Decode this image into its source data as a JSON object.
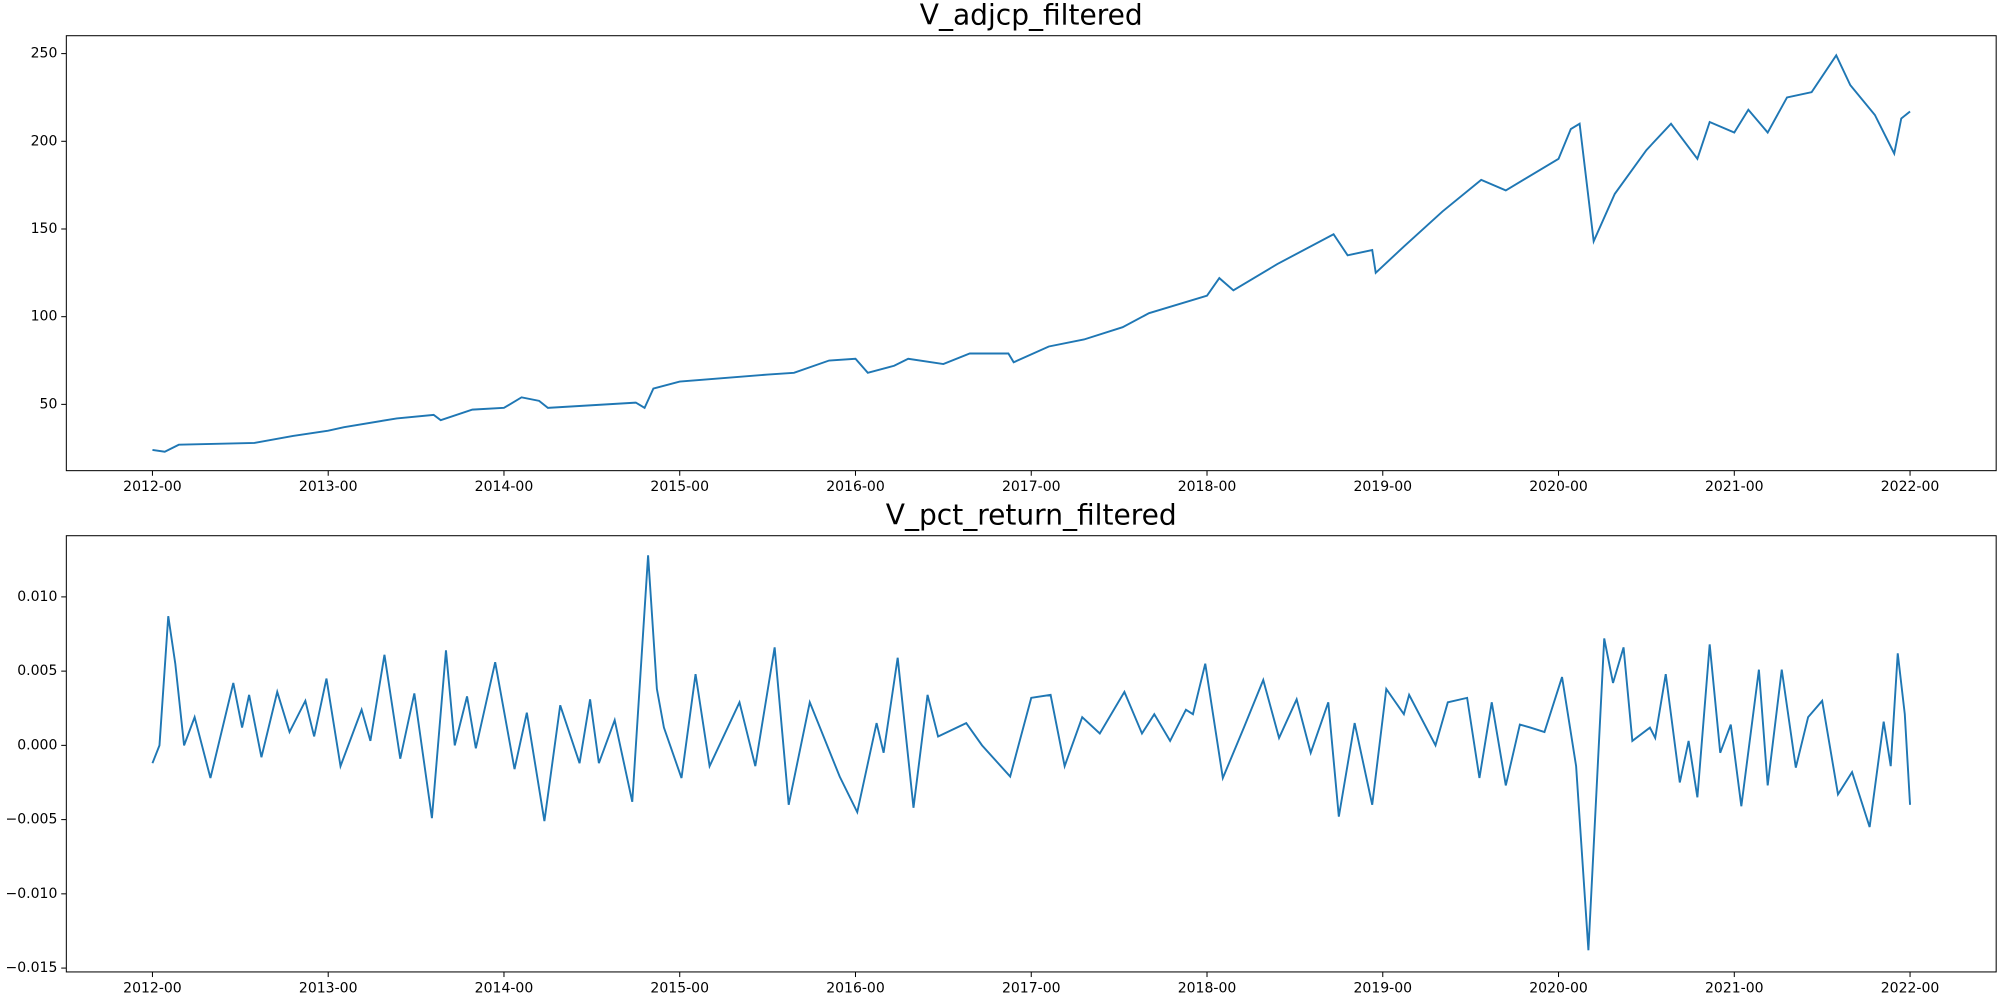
{
  "chart_data": [
    {
      "type": "line",
      "title": "V_adjcp_filtered",
      "color": "#1f77b4",
      "xlim": [
        2011.51,
        2022.49
      ],
      "ylim": [
        12.2,
        260.2
      ],
      "xticks": [
        {
          "value": 2012,
          "label": "2012-00"
        },
        {
          "value": 2013,
          "label": "2013-00"
        },
        {
          "value": 2014,
          "label": "2014-00"
        },
        {
          "value": 2015,
          "label": "2015-00"
        },
        {
          "value": 2016,
          "label": "2016-00"
        },
        {
          "value": 2017,
          "label": "2017-00"
        },
        {
          "value": 2018,
          "label": "2018-00"
        },
        {
          "value": 2019,
          "label": "2019-00"
        },
        {
          "value": 2020,
          "label": "2020-00"
        },
        {
          "value": 2021,
          "label": "2021-00"
        },
        {
          "value": 2022,
          "label": "2022-00"
        }
      ],
      "yticks": [
        50,
        100,
        150,
        200,
        250
      ],
      "x": [
        2012.0,
        2012.07,
        2012.15,
        2012.58,
        2012.8,
        2013.0,
        2013.09,
        2013.39,
        2013.6,
        2013.64,
        2013.82,
        2014.0,
        2014.1,
        2014.2,
        2014.25,
        2014.75,
        2014.8,
        2014.85,
        2015.0,
        2015.5,
        2015.65,
        2015.85,
        2016.0,
        2016.07,
        2016.22,
        2016.3,
        2016.5,
        2016.65,
        2016.87,
        2016.9,
        2017.1,
        2017.3,
        2017.52,
        2017.67,
        2018.0,
        2018.07,
        2018.15,
        2018.4,
        2018.72,
        2018.8,
        2018.94,
        2018.96,
        2019.12,
        2019.34,
        2019.56,
        2019.7,
        2020.0,
        2020.07,
        2020.12,
        2020.2,
        2020.32,
        2020.5,
        2020.64,
        2020.79,
        2020.86,
        2021.0,
        2021.08,
        2021.19,
        2021.3,
        2021.44,
        2021.58,
        2021.66,
        2021.8,
        2021.91,
        2021.95,
        2022.0
      ],
      "values": [
        24,
        23,
        27,
        28,
        32,
        35,
        37,
        42,
        44,
        41,
        47,
        48,
        54,
        52,
        48,
        51,
        48,
        59,
        63,
        67,
        68,
        75,
        76,
        68,
        72,
        76,
        73,
        79,
        79,
        74,
        83,
        87,
        94,
        102,
        112,
        122,
        115,
        130,
        147,
        135,
        138,
        125,
        140,
        160,
        178,
        172,
        190,
        207,
        210,
        143,
        170,
        195,
        210,
        190,
        211,
        205,
        218,
        205,
        225,
        228,
        249,
        232,
        215,
        193,
        213,
        217
      ]
    },
    {
      "type": "line",
      "title": "V_pct_return_filtered",
      "color": "#1f77b4",
      "xlim": [
        2011.51,
        2022.49
      ],
      "ylim": [
        -0.01526,
        0.01412
      ],
      "xticks": [
        {
          "value": 2012,
          "label": "2012-00"
        },
        {
          "value": 2013,
          "label": "2013-00"
        },
        {
          "value": 2014,
          "label": "2014-00"
        },
        {
          "value": 2015,
          "label": "2015-00"
        },
        {
          "value": 2016,
          "label": "2016-00"
        },
        {
          "value": 2017,
          "label": "2017-00"
        },
        {
          "value": 2018,
          "label": "2018-00"
        },
        {
          "value": 2019,
          "label": "2019-00"
        },
        {
          "value": 2020,
          "label": "2020-00"
        },
        {
          "value": 2021,
          "label": "2021-00"
        },
        {
          "value": 2022,
          "label": "2022-00"
        }
      ],
      "yticks": [
        {
          "value": -0.015,
          "label": "−0.015"
        },
        {
          "value": -0.01,
          "label": "−0.010"
        },
        {
          "value": -0.005,
          "label": "−0.005"
        },
        {
          "value": 0,
          "label": "0.000"
        },
        {
          "value": 0.005,
          "label": "0.005"
        },
        {
          "value": 0.01,
          "label": "0.010"
        }
      ],
      "x": [
        2012.0,
        2012.04,
        2012.09,
        2012.13,
        2012.18,
        2012.24,
        2012.33,
        2012.46,
        2012.51,
        2012.55,
        2012.62,
        2012.71,
        2012.78,
        2012.87,
        2012.92,
        2012.99,
        2013.07,
        2013.19,
        2013.24,
        2013.32,
        2013.41,
        2013.49,
        2013.59,
        2013.67,
        2013.72,
        2013.79,
        2013.84,
        2013.95,
        2014.06,
        2014.13,
        2014.23,
        2014.32,
        2014.43,
        2014.49,
        2014.54,
        2014.63,
        2014.73,
        2014.82,
        2014.87,
        2014.91,
        2015.01,
        2015.09,
        2015.17,
        2015.34,
        2015.43,
        2015.54,
        2015.62,
        2015.74,
        2015.91,
        2016.01,
        2016.12,
        2016.16,
        2016.24,
        2016.33,
        2016.41,
        2016.47,
        2016.63,
        2016.72,
        2016.88,
        2017.0,
        2017.11,
        2017.19,
        2017.29,
        2017.39,
        2017.53,
        2017.63,
        2017.7,
        2017.79,
        2017.88,
        2017.92,
        2017.99,
        2018.09,
        2018.21,
        2018.32,
        2018.41,
        2018.51,
        2018.59,
        2018.69,
        2018.75,
        2018.84,
        2018.94,
        2019.02,
        2019.12,
        2019.15,
        2019.3,
        2019.37,
        2019.48,
        2019.55,
        2019.62,
        2019.7,
        2019.78,
        2019.84,
        2019.92,
        2020.02,
        2020.1,
        2020.17,
        2020.26,
        2020.31,
        2020.37,
        2020.42,
        2020.52,
        2020.55,
        2020.61,
        2020.69,
        2020.74,
        2020.79,
        2020.86,
        2020.92,
        2020.98,
        2021.04,
        2021.14,
        2021.19,
        2021.27,
        2021.35,
        2021.42,
        2021.5,
        2021.59,
        2021.67,
        2021.77,
        2021.85,
        2021.89,
        2021.93,
        2021.97,
        2022.0
      ],
      "values": [
        -0.0012,
        0,
        0.0087,
        0.0055,
        0,
        0.0019,
        -0.0022,
        0.0042,
        0.0012,
        0.0034,
        -0.0008,
        0.0036,
        0.0009,
        0.003,
        0.0006,
        0.0045,
        -0.0014,
        0.0024,
        0.0003,
        0.0061,
        -0.0009,
        0.0035,
        -0.0049,
        0.0064,
        0,
        0.0033,
        -0.0002,
        0.0056,
        -0.0016,
        0.0022,
        -0.0051,
        0.0027,
        -0.0012,
        0.0031,
        -0.0012,
        0.0017,
        -0.0038,
        0.0128,
        0.0038,
        0.0012,
        -0.0022,
        0.0048,
        -0.0014,
        0.0029,
        -0.0014,
        0.0066,
        -0.004,
        0.0029,
        -0.0021,
        -0.0045,
        0.0015,
        -0.0005,
        0.0059,
        -0.0042,
        0.0034,
        0.0006,
        0.0015,
        0,
        -0.0021,
        0.0032,
        0.0034,
        -0.0014,
        0.0019,
        0.0008,
        0.0036,
        0.0008,
        0.0021,
        0.0003,
        0.0024,
        0.0021,
        0.0055,
        -0.0022,
        0.0012,
        0.0044,
        0.0005,
        0.0031,
        -0.0005,
        0.0029,
        -0.0048,
        0.0015,
        -0.004,
        0.0038,
        0.0021,
        0.0034,
        0,
        0.0029,
        0.0032,
        -0.0022,
        0.0029,
        -0.0027,
        0.0014,
        0.0012,
        0.0009,
        0.0046,
        -0.0014,
        -0.0138,
        0.0072,
        0.0042,
        0.0066,
        0.0003,
        0.0012,
        0.0005,
        0.0048,
        -0.0025,
        0.0003,
        -0.0035,
        0.0068,
        -0.0005,
        0.0014,
        -0.0041,
        0.0051,
        -0.0027,
        0.0051,
        -0.0015,
        0.0019,
        0.003,
        -0.0033,
        -0.0018,
        -0.0055,
        0.0016,
        -0.0014,
        0.0062,
        0.0021,
        -0.004
      ]
    }
  ]
}
